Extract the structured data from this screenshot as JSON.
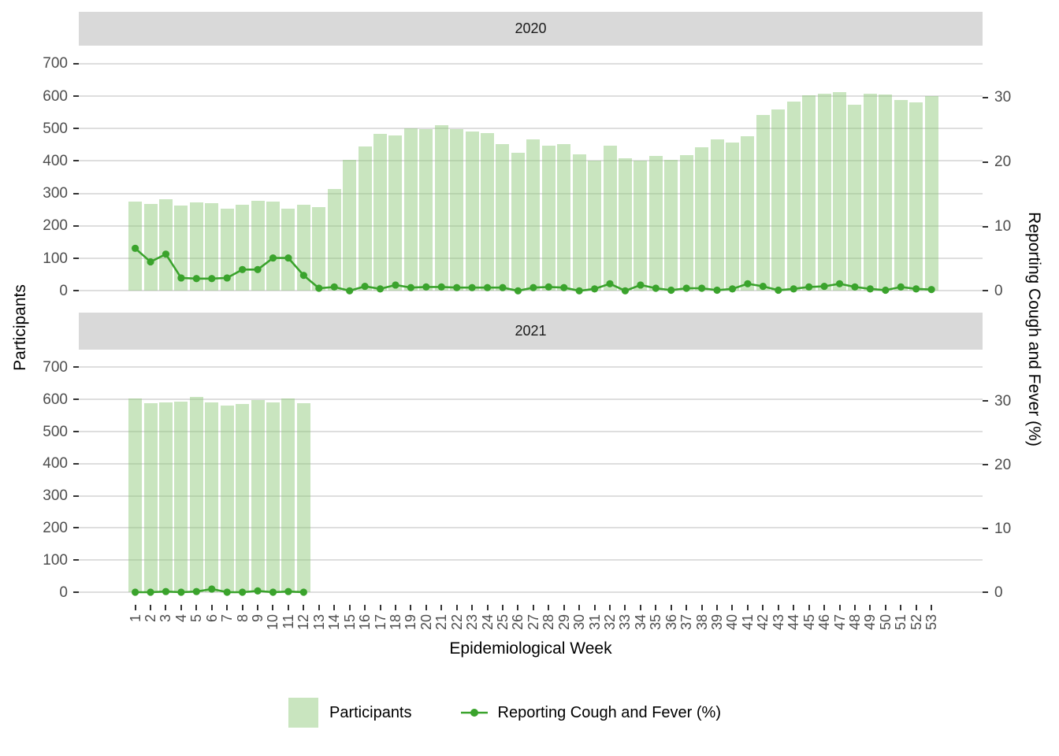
{
  "figure": {
    "facets": [
      "2020",
      "2021"
    ],
    "x_axis_title": "Epidemiological Week",
    "y_axis_left_title": "Participants",
    "y_axis_right_title": "Reporting Cough and Fever (%)",
    "left_ticks": [
      700,
      600,
      500,
      400,
      300,
      200,
      100,
      0
    ],
    "right_ticks": [
      30,
      20,
      10,
      0
    ],
    "legend": [
      {
        "label": "Participants",
        "type": "fill"
      },
      {
        "label": "Reporting Cough and Fever (%)",
        "type": "line"
      }
    ],
    "colors": {
      "bar_fill": "#c9e5bf",
      "bar_fill_rgba": "rgba(135,197,113,0.45)",
      "line": "#3aa32c",
      "strip_bg": "#d9d9d9",
      "gridline": "#dedede",
      "axis_text": "#4d4d4d",
      "tick_mark": "#333333",
      "background": "#ffffff"
    }
  },
  "chart_data": [
    {
      "type": "bar",
      "facet": "2020",
      "x": [
        1,
        2,
        3,
        4,
        5,
        6,
        7,
        8,
        9,
        10,
        11,
        12,
        13,
        14,
        15,
        16,
        17,
        18,
        19,
        20,
        21,
        22,
        23,
        24,
        25,
        26,
        27,
        28,
        29,
        30,
        31,
        32,
        33,
        34,
        35,
        36,
        37,
        38,
        39,
        40,
        41,
        42,
        43,
        44,
        45,
        46,
        47,
        48,
        49,
        50,
        51,
        52,
        53
      ],
      "series": [
        {
          "name": "Participants",
          "axis": "left",
          "style": "bar",
          "values": [
            275,
            268,
            283,
            262,
            273,
            271,
            253,
            265,
            277,
            275,
            252,
            266,
            258,
            314,
            404,
            444,
            484,
            478,
            500,
            498,
            510,
            499,
            490,
            487,
            452,
            426,
            467,
            448,
            452,
            421,
            401,
            447,
            409,
            400,
            416,
            404,
            419,
            442,
            466,
            458,
            476,
            543,
            558,
            583,
            602,
            607,
            612,
            573,
            607,
            606,
            589,
            581,
            601
          ]
        },
        {
          "name": "Reporting Cough and Fever (%)",
          "axis": "right",
          "style": "line",
          "values": [
            6.6,
            4.5,
            5.7,
            2.0,
            1.9,
            1.9,
            2.0,
            3.3,
            3.3,
            5.1,
            5.1,
            2.4,
            0.4,
            0.6,
            0.0,
            0.7,
            0.3,
            0.9,
            0.5,
            0.6,
            0.6,
            0.5,
            0.5,
            0.5,
            0.5,
            0.0,
            0.5,
            0.6,
            0.5,
            0.0,
            0.3,
            1.1,
            0.0,
            0.9,
            0.4,
            0.1,
            0.4,
            0.4,
            0.1,
            0.3,
            1.1,
            0.7,
            0.1,
            0.3,
            0.6,
            0.7,
            1.1,
            0.6,
            0.3,
            0.1,
            0.6,
            0.3,
            0.2
          ]
        }
      ],
      "ylim_left": [
        0,
        700
      ],
      "ylim_right": [
        0,
        30
      ],
      "grid": "major-horizontal",
      "legend_position": "bottom"
    },
    {
      "type": "bar",
      "facet": "2021",
      "x": [
        1,
        2,
        3,
        4,
        5,
        6,
        7,
        8,
        9,
        10,
        11,
        12,
        13,
        14,
        15,
        16,
        17,
        18,
        19,
        20,
        21,
        22,
        23,
        24,
        25,
        26,
        27,
        28,
        29,
        30,
        31,
        32,
        33,
        34,
        35,
        36,
        37,
        38,
        39,
        40,
        41,
        42,
        43,
        44,
        45,
        46,
        47,
        48,
        49,
        50,
        51,
        52,
        53
      ],
      "series": [
        {
          "name": "Participants",
          "axis": "left",
          "style": "bar",
          "values": [
            602,
            589,
            591,
            594,
            609,
            590,
            582,
            585,
            597,
            590,
            602,
            589,
            null,
            null,
            null,
            null,
            null,
            null,
            null,
            null,
            null,
            null,
            null,
            null,
            null,
            null,
            null,
            null,
            null,
            null,
            null,
            null,
            null,
            null,
            null,
            null,
            null,
            null,
            null,
            null,
            null,
            null,
            null,
            null,
            null,
            null,
            null,
            null,
            null,
            null,
            null,
            null,
            null
          ]
        },
        {
          "name": "Reporting Cough and Fever (%)",
          "axis": "right",
          "style": "line",
          "values": [
            0,
            0,
            0.1,
            0,
            0.1,
            0.5,
            0,
            0,
            0.2,
            0,
            0.1,
            0,
            null,
            null,
            null,
            null,
            null,
            null,
            null,
            null,
            null,
            null,
            null,
            null,
            null,
            null,
            null,
            null,
            null,
            null,
            null,
            null,
            null,
            null,
            null,
            null,
            null,
            null,
            null,
            null,
            null,
            null,
            null,
            null,
            null,
            null,
            null,
            null,
            null,
            null,
            null,
            null,
            null
          ]
        }
      ],
      "ylim_left": [
        0,
        700
      ],
      "ylim_right": [
        0,
        30
      ],
      "grid": "major-horizontal",
      "legend_position": "bottom"
    }
  ]
}
